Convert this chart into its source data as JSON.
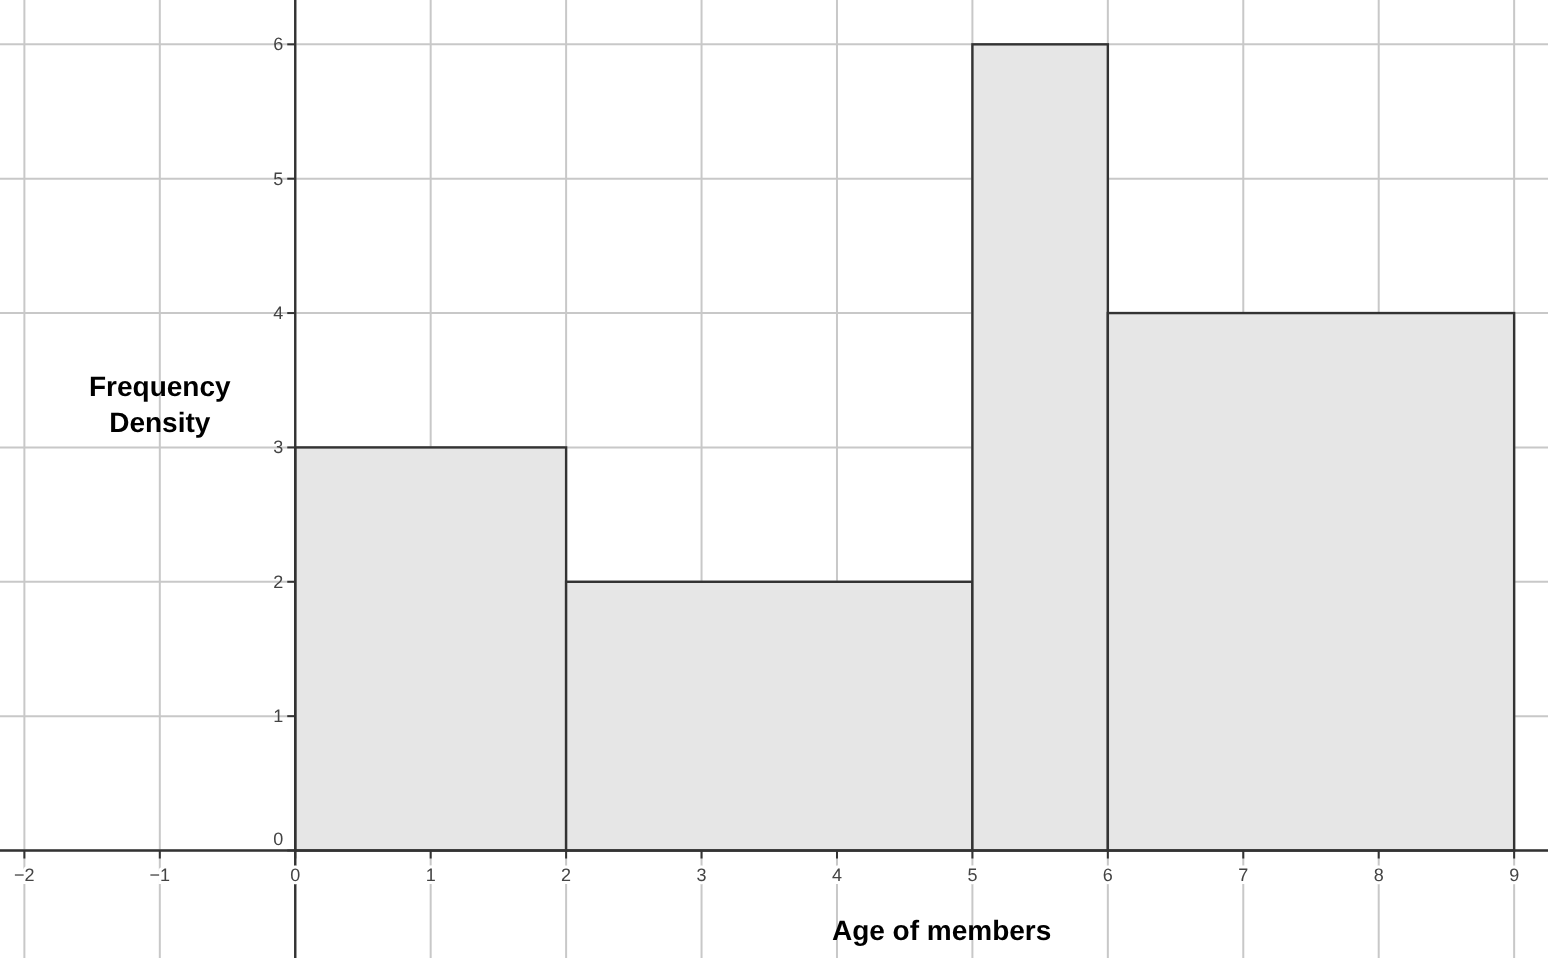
{
  "chart_data": {
    "type": "histogram",
    "xlabel": "Age of members",
    "ylabel": "Frequency\nDensity",
    "bins": [
      0,
      2,
      5,
      6,
      9
    ],
    "values": [
      3,
      2,
      6,
      4
    ],
    "color": "#e6e6e6",
    "xlim": [
      -2.18,
      9.25
    ],
    "ylim": [
      -0.8,
      6.33
    ],
    "xticks": [
      -2,
      -1,
      0,
      1,
      2,
      3,
      4,
      5,
      6,
      7,
      8,
      9
    ],
    "yticks": [
      0,
      1,
      2,
      3,
      4,
      5,
      6
    ],
    "grid": true
  }
}
